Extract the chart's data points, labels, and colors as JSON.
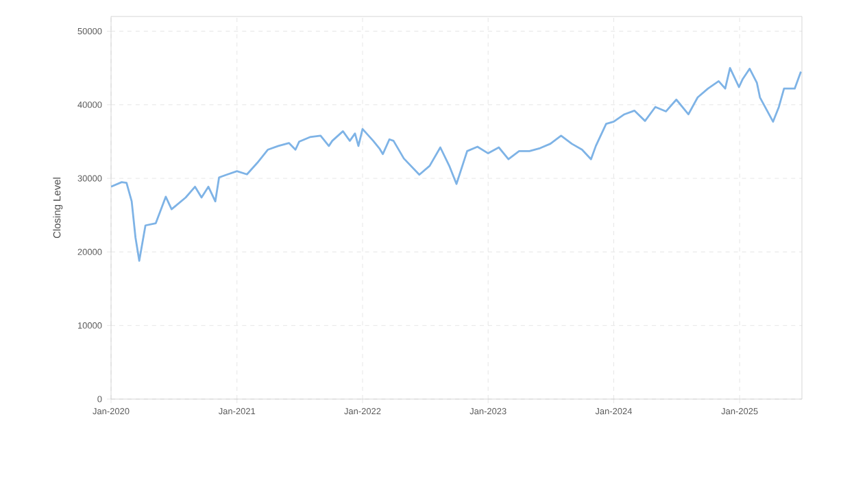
{
  "chart_data": {
    "type": "line",
    "ylabel": "Closing Level",
    "x": [
      "2020-01-01",
      "2020-02-01",
      "2020-02-15",
      "2020-03-01",
      "2020-03-12",
      "2020-03-23",
      "2020-04-10",
      "2020-05-10",
      "2020-06-08",
      "2020-06-25",
      "2020-08-05",
      "2020-09-01",
      "2020-09-20",
      "2020-10-10",
      "2020-10-30",
      "2020-11-10",
      "2020-12-05",
      "2021-01-01",
      "2021-01-30",
      "2021-03-01",
      "2021-04-01",
      "2021-05-01",
      "2021-06-01",
      "2021-06-20",
      "2021-07-01",
      "2021-08-01",
      "2021-09-01",
      "2021-09-25",
      "2021-10-05",
      "2021-11-05",
      "2021-11-25",
      "2021-12-10",
      "2021-12-20",
      "2022-01-01",
      "2022-02-01",
      "2022-02-20",
      "2022-03-01",
      "2022-03-20",
      "2022-04-01",
      "2022-05-01",
      "2022-06-15",
      "2022-07-15",
      "2022-08-15",
      "2022-09-10",
      "2022-10-01",
      "2022-11-01",
      "2022-12-01",
      "2023-01-01",
      "2023-02-01",
      "2023-03-01",
      "2023-04-01",
      "2023-05-01",
      "2023-06-01",
      "2023-07-01",
      "2023-08-01",
      "2023-09-01",
      "2023-10-01",
      "2023-10-27",
      "2023-11-10",
      "2023-12-10",
      "2024-01-01",
      "2024-02-01",
      "2024-03-01",
      "2024-04-01",
      "2024-05-01",
      "2024-06-01",
      "2024-07-01",
      "2024-08-05",
      "2024-09-01",
      "2024-10-01",
      "2024-11-01",
      "2024-11-20",
      "2024-12-04",
      "2024-12-30",
      "2025-01-10",
      "2025-01-30",
      "2025-02-20",
      "2025-03-01",
      "2025-04-08",
      "2025-04-25",
      "2025-05-10",
      "2025-06-10",
      "2025-06-28"
    ],
    "series": [
      {
        "color": "#7eb3e6",
        "values": [
          28860,
          29480,
          29400,
          26870,
          21970,
          18800,
          23600,
          23900,
          27500,
          25800,
          27400,
          28860,
          27400,
          28860,
          26870,
          30120,
          30540,
          30970,
          30540,
          32100,
          33900,
          34400,
          34800,
          33900,
          35000,
          35600,
          35800,
          34400,
          35100,
          36400,
          35100,
          36100,
          34400,
          36700,
          35100,
          34000,
          33300,
          35300,
          35100,
          32700,
          30500,
          31700,
          34200,
          31700,
          29240,
          33700,
          34300,
          33400,
          34200,
          32600,
          33700,
          33700,
          34100,
          34700,
          35800,
          34700,
          33900,
          32590,
          34400,
          37400,
          37700,
          38700,
          39200,
          37800,
          39700,
          39100,
          40700,
          38700,
          41000,
          42200,
          43200,
          42200,
          45000,
          42400,
          43500,
          44900,
          43000,
          41000,
          37700,
          39700,
          42200,
          42200,
          44500
        ]
      }
    ],
    "xlim": [
      "2020-01-01",
      "2025-07-01"
    ],
    "ylim": [
      0,
      52000
    ],
    "xticks": [
      {
        "value": "2020-01-01",
        "label": "Jan-2020"
      },
      {
        "value": "2021-01-01",
        "label": "Jan-2021"
      },
      {
        "value": "2022-01-01",
        "label": "Jan-2022"
      },
      {
        "value": "2023-01-01",
        "label": "Jan-2023"
      },
      {
        "value": "2024-01-01",
        "label": "Jan-2024"
      },
      {
        "value": "2025-01-01",
        "label": "Jan-2025"
      }
    ],
    "yticks": [
      0,
      10000,
      20000,
      30000,
      40000,
      50000
    ],
    "grid": true,
    "marker": "none",
    "line_style": "solid"
  }
}
